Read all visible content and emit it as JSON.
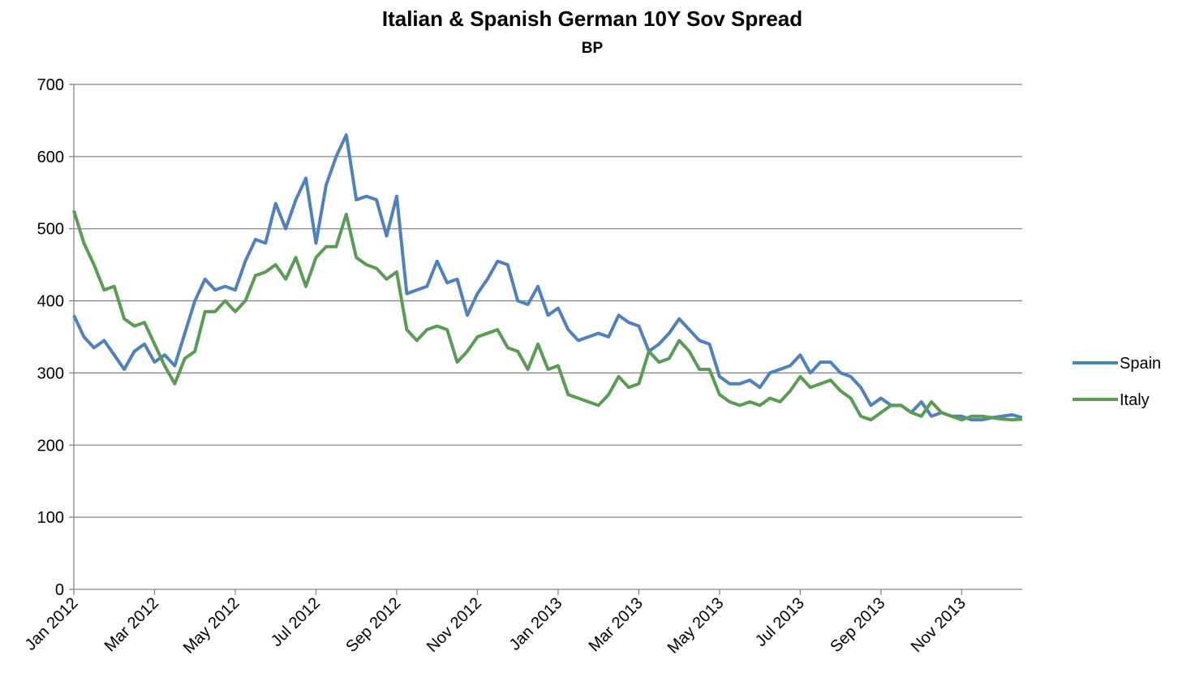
{
  "chart_data": {
    "type": "line",
    "title": "Italian & Spanish German 10Y Sov Spread",
    "subtitle": "BP",
    "categories": [
      "Jan 2012",
      null,
      null,
      null,
      null,
      null,
      null,
      null,
      "Mar 2012",
      null,
      null,
      null,
      null,
      null,
      null,
      null,
      "May 2012",
      null,
      null,
      null,
      null,
      null,
      null,
      null,
      "Jul 2012",
      null,
      null,
      null,
      null,
      null,
      null,
      null,
      "Sep 2012",
      null,
      null,
      null,
      null,
      null,
      null,
      null,
      "Nov 2012",
      null,
      null,
      null,
      null,
      null,
      null,
      null,
      "Jan 2013",
      null,
      null,
      null,
      null,
      null,
      null,
      null,
      "Mar 2013",
      null,
      null,
      null,
      null,
      null,
      null,
      null,
      "May 2013",
      null,
      null,
      null,
      null,
      null,
      null,
      null,
      "Jul 2013",
      null,
      null,
      null,
      null,
      null,
      null,
      null,
      "Sep 2013",
      null,
      null,
      null,
      null,
      null,
      null,
      null,
      "Nov 2013",
      null,
      null,
      null,
      null,
      null,
      null
    ],
    "series": [
      {
        "name": "Spain",
        "color": "#4f81bd",
        "values": [
          380,
          350,
          335,
          345,
          325,
          305,
          330,
          340,
          315,
          325,
          310,
          355,
          400,
          430,
          415,
          420,
          415,
          455,
          485,
          480,
          535,
          500,
          540,
          570,
          480,
          560,
          600,
          630,
          540,
          545,
          540,
          490,
          545,
          410,
          415,
          420,
          455,
          425,
          430,
          380,
          410,
          430,
          455,
          450,
          400,
          395,
          420,
          380,
          390,
          360,
          345,
          350,
          355,
          350,
          380,
          370,
          365,
          330,
          340,
          355,
          375,
          360,
          345,
          340,
          295,
          285,
          285,
          290,
          280,
          300,
          305,
          310,
          325,
          300,
          315,
          315,
          300,
          295,
          280,
          255,
          265,
          255,
          255,
          245,
          260,
          240,
          245,
          240,
          240,
          235,
          235,
          238,
          240,
          242,
          238
        ]
      },
      {
        "name": "Italy",
        "color": "#5b9c55",
        "values": [
          525,
          480,
          450,
          415,
          420,
          375,
          365,
          370,
          340,
          310,
          285,
          320,
          330,
          385,
          385,
          400,
          385,
          400,
          435,
          440,
          450,
          430,
          460,
          420,
          460,
          475,
          475,
          520,
          460,
          450,
          445,
          430,
          440,
          360,
          345,
          360,
          365,
          360,
          315,
          330,
          350,
          355,
          360,
          335,
          330,
          305,
          340,
          305,
          310,
          270,
          265,
          260,
          255,
          270,
          295,
          280,
          285,
          330,
          315,
          320,
          345,
          330,
          305,
          305,
          270,
          260,
          255,
          260,
          255,
          265,
          260,
          275,
          295,
          280,
          285,
          290,
          275,
          265,
          240,
          235,
          245,
          255,
          255,
          245,
          240,
          260,
          245,
          240,
          235,
          240,
          240,
          238,
          236,
          235,
          236
        ]
      }
    ],
    "ylim": [
      0,
      700
    ],
    "yticks": [
      0,
      100,
      200,
      300,
      400,
      500,
      600,
      700
    ],
    "grid": true,
    "legend": "right"
  }
}
